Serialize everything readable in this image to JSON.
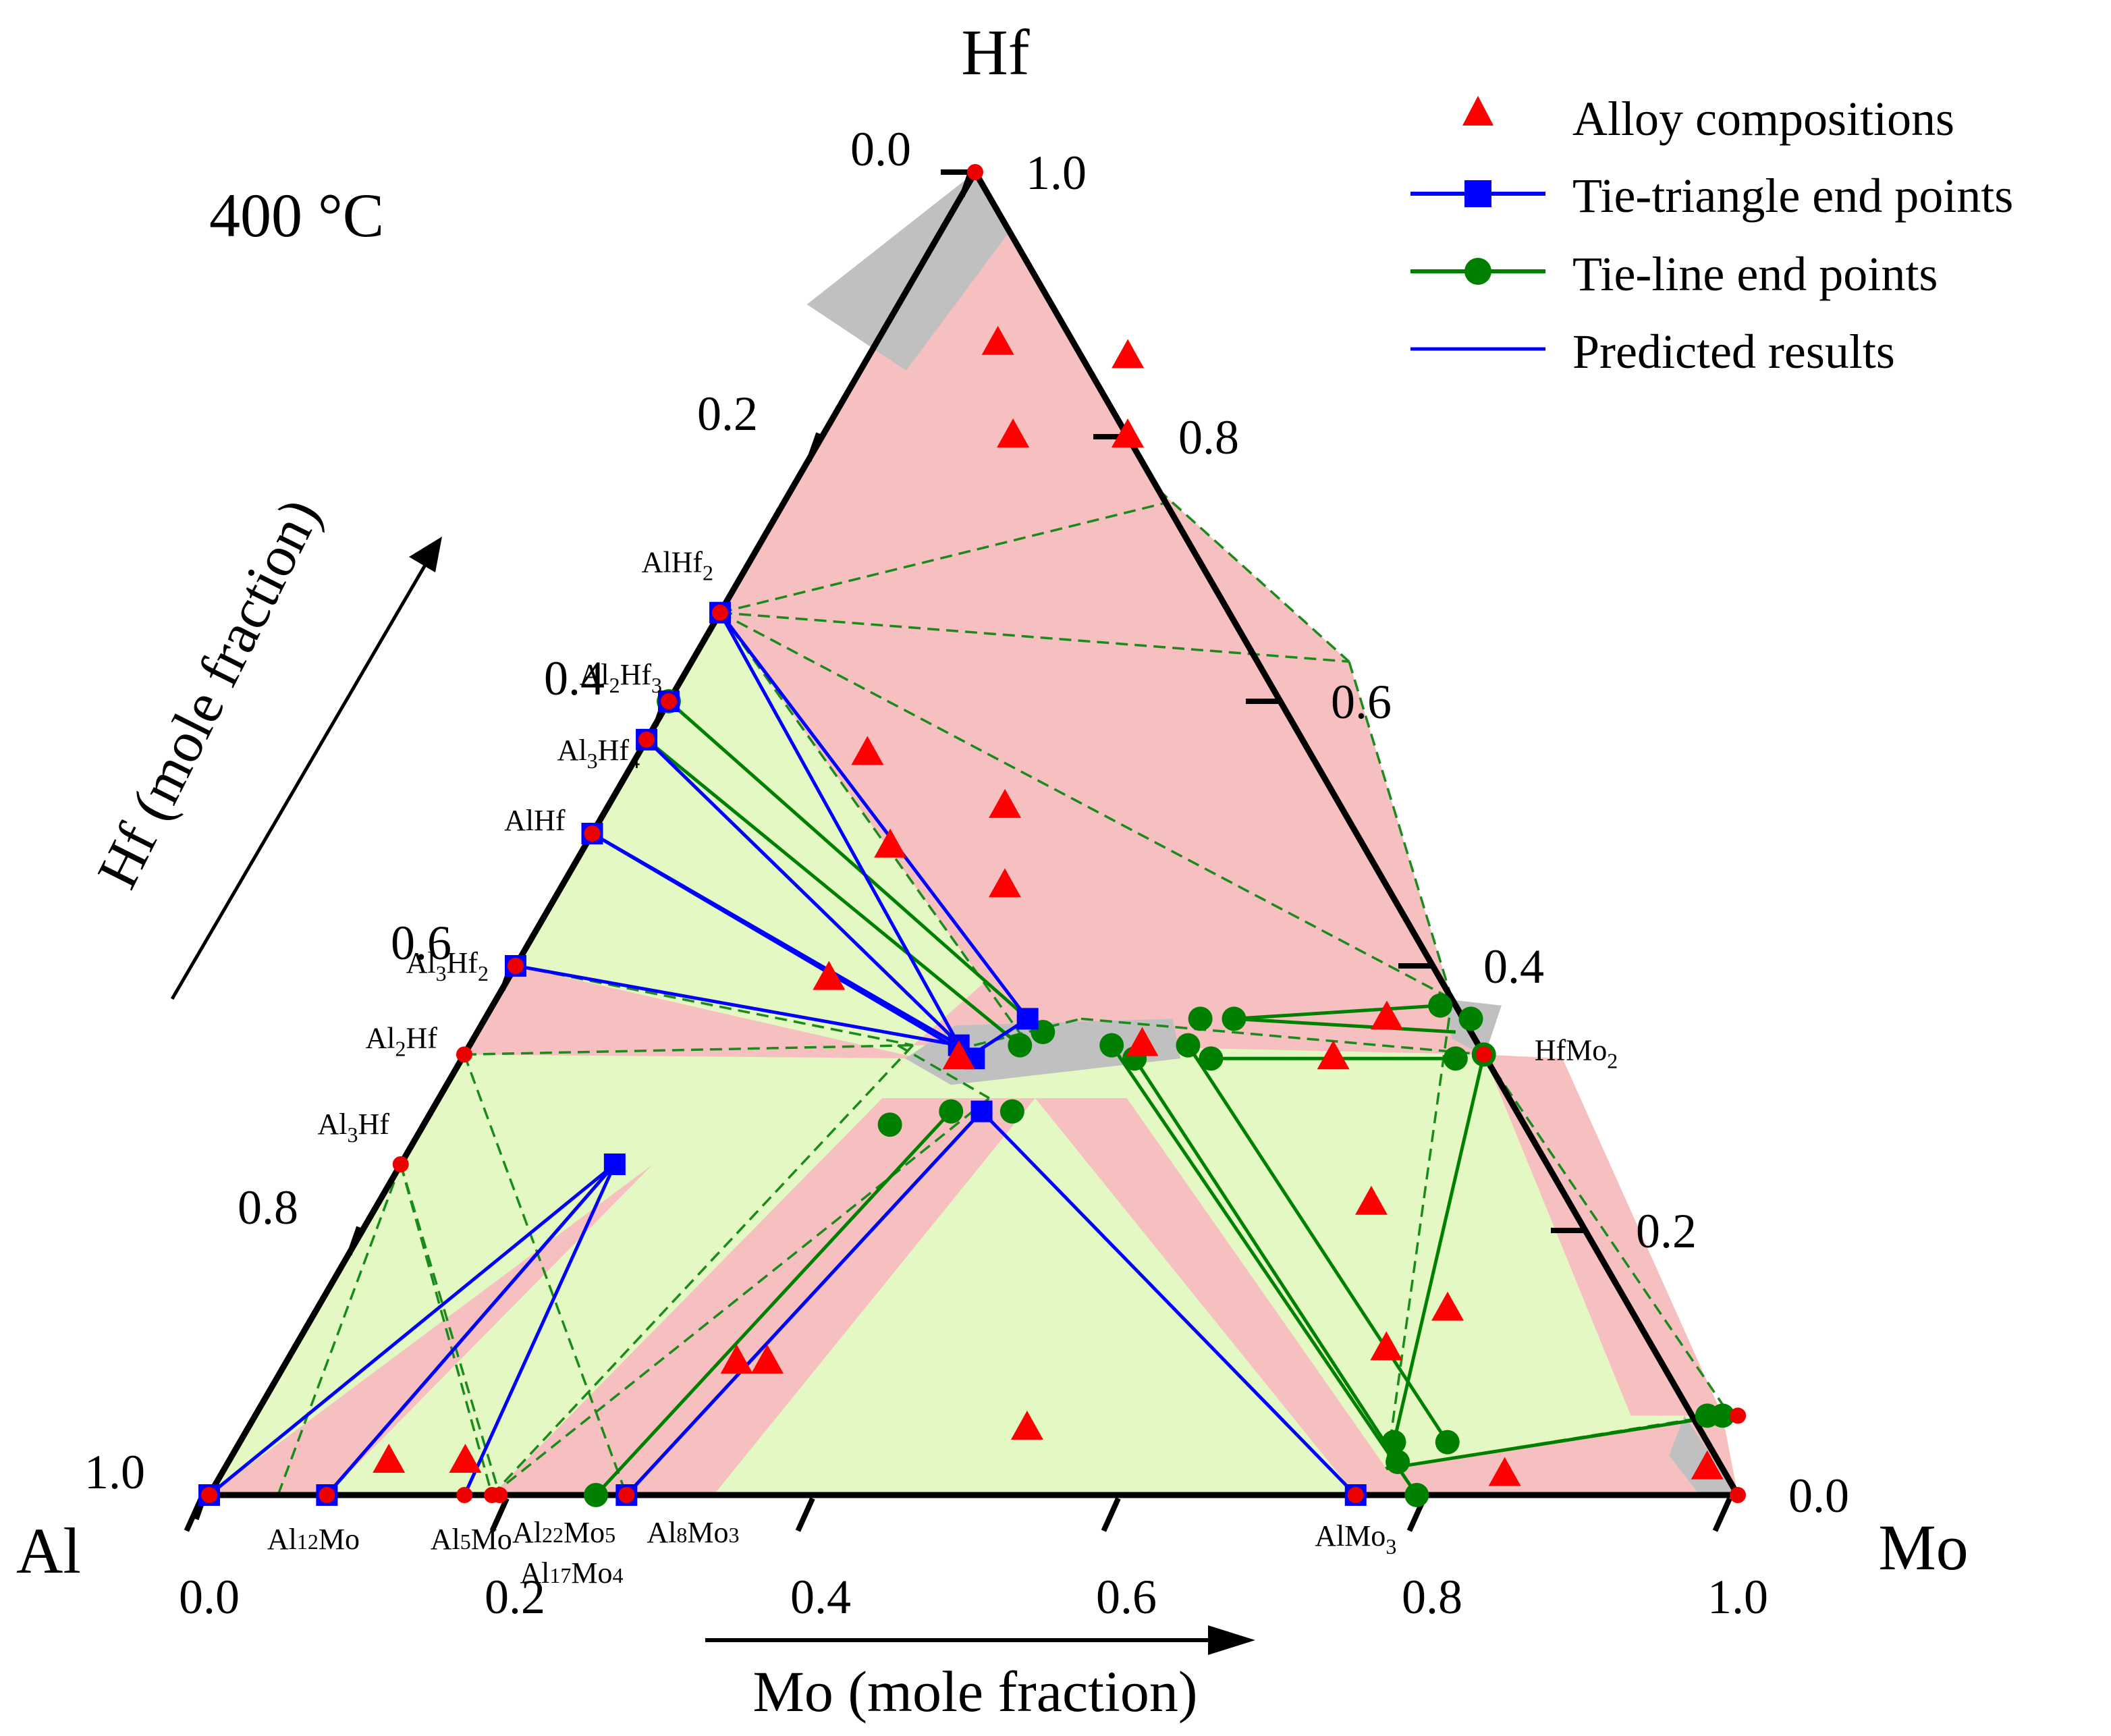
{
  "chart_data": {
    "type": "ternary",
    "title": "400 °C",
    "vertices": {
      "left": "Al",
      "right": "Mo",
      "top": "Hf"
    },
    "xlabel": "Mo (mole fraction)",
    "ylabel": "Hf (mole fraction)",
    "bottom_ticks": [
      "0.0",
      "0.2",
      "0.4",
      "0.6",
      "0.8",
      "1.0"
    ],
    "right_ticks": [
      "0.0",
      "0.2",
      "0.4",
      "0.6",
      "0.8",
      "1.0"
    ],
    "left_ticks": [
      "0.0",
      "0.2",
      "0.4",
      "0.6",
      "0.8",
      "1.0"
    ],
    "legend": {
      "position": "top-right",
      "items": [
        {
          "key": "alloy",
          "label": "Alloy compositions",
          "color": "#ff0000",
          "marker": "triangle"
        },
        {
          "key": "tie_triangle",
          "label": "Tie-triangle end points",
          "color": "#0000ff",
          "marker": "square"
        },
        {
          "key": "tie_line",
          "label": "Tie-line end points",
          "color": "#008000",
          "marker": "circle"
        },
        {
          "key": "predicted",
          "label": "Predicted results",
          "color": "#0000ff",
          "marker": "none"
        }
      ]
    },
    "colors": {
      "two_phase": "#e4f8c4",
      "three_phase": "#f7c0c0",
      "single_phase": "#c0c0c0",
      "predicted_line": "#1a8a1a",
      "phase_point": "#ee0000"
    },
    "phases": [
      {
        "name": "Al",
        "mo": 0.0,
        "hf": 0.0,
        "label": ""
      },
      {
        "name": "Al12Mo",
        "mo": 0.077,
        "hf": 0.0,
        "label_main": "Al",
        "sub1": "12",
        "rest": "Mo",
        "sub2": "",
        "sub_style": "small",
        "anchor": "middle"
      },
      {
        "name": "Al5Mo",
        "mo": 0.167,
        "hf": 0.0,
        "label_main": "Al",
        "sub1": "5",
        "rest": "Mo",
        "sub2": "",
        "sub_style": "small",
        "anchor": "middle"
      },
      {
        "name": "Al22Mo5",
        "mo": 0.185,
        "hf": 0.0,
        "label_main": "Al",
        "sub1": "22",
        "rest": "Mo",
        "sub2": "5",
        "sub_style": "small",
        "anchor": "start"
      },
      {
        "name": "Al17Mo4",
        "mo": 0.19,
        "hf": 0.0,
        "label_main": "Al",
        "sub1": "17",
        "rest": "Mo",
        "sub2": "4",
        "sub_style": "small",
        "anchor": "start"
      },
      {
        "name": "Al8Mo3",
        "mo": 0.273,
        "hf": 0.0,
        "label_main": "Al",
        "sub1": "8",
        "rest": "Mo",
        "sub2": "3",
        "sub_style": "small",
        "anchor": "start"
      },
      {
        "name": "AlMo3",
        "mo": 0.75,
        "hf": 0.0,
        "label_main": "AlMo",
        "sub1": "3",
        "rest": "",
        "sub2": "",
        "sub_style": "sub",
        "anchor": "middle"
      },
      {
        "name": "Mo",
        "mo": 1.0,
        "hf": 0.0,
        "label": ""
      },
      {
        "name": "Hf",
        "mo": 0.0,
        "hf": 1.0,
        "label": ""
      },
      {
        "name": "AlHf2",
        "mo": 0.0,
        "hf": 0.667,
        "label_main": "AlHf",
        "sub1": "2",
        "rest": "",
        "sub2": "",
        "sub_style": "sub",
        "anchor": "end"
      },
      {
        "name": "Al2Hf3",
        "mo": 0.0,
        "hf": 0.6,
        "label_main": "Al",
        "sub1": "2",
        "rest": "Hf",
        "sub2": "3",
        "sub_style": "sub",
        "anchor": "end"
      },
      {
        "name": "Al3Hf4",
        "mo": 0.0,
        "hf": 0.571,
        "label_main": "Al",
        "sub1": "3",
        "rest": "Hf",
        "sub2": "4",
        "sub_style": "sub",
        "anchor": "end"
      },
      {
        "name": "AlHf",
        "mo": 0.0,
        "hf": 0.5,
        "label_main": "AlHf",
        "sub1": "",
        "rest": "",
        "sub2": "",
        "sub_style": "sub",
        "anchor": "end"
      },
      {
        "name": "Al3Hf2",
        "mo": 0.0,
        "hf": 0.4,
        "label_main": "Al",
        "sub1": "3",
        "rest": "Hf",
        "sub2": "2",
        "sub_style": "sub",
        "anchor": "end"
      },
      {
        "name": "Al2Hf",
        "mo": 0.0,
        "hf": 0.333,
        "label_main": "Al",
        "sub1": "2",
        "rest": "Hf",
        "sub2": "",
        "sub_style": "sub",
        "anchor": "end"
      },
      {
        "name": "Al3Hf",
        "mo": 0.0,
        "hf": 0.25,
        "label_main": "Al",
        "sub1": "3",
        "rest": "Hf",
        "sub2": "",
        "sub_style": "sub",
        "anchor": "middle"
      },
      {
        "name": "HfMo2",
        "mo": 0.667,
        "hf": 0.333,
        "label_main": "HfMo",
        "sub1": "2",
        "rest": "",
        "sub2": "",
        "sub_style": "sub",
        "anchor": "start"
      },
      {
        "name": "Mo-rich",
        "mo": 0.97,
        "hf": 0.06,
        "label": ""
      }
    ],
    "three_phase_regions": [
      [
        [
          0.0,
          1.0
        ],
        [
          0.105,
          0.895
        ],
        [
          0.24,
          0.76
        ],
        [
          0.0,
          1.0
        ]
      ],
      [
        [
          0.0,
          0.667
        ],
        [
          0.24,
          0.76
        ],
        [
          0.0,
          1.0
        ]
      ],
      [
        [
          0.0,
          0.667
        ],
        [
          0.24,
          0.76
        ],
        [
          0.43,
          0.63
        ],
        [
          0.0,
          0.667
        ]
      ],
      [
        [
          0.0,
          0.667
        ],
        [
          0.36,
          0.345
        ],
        [
          0.43,
          0.63
        ]
      ],
      [
        [
          0.29,
          0.34
        ],
        [
          0.43,
          0.63
        ],
        [
          0.625,
          0.375
        ],
        [
          0.39,
          0.34
        ]
      ],
      [
        [
          0.0,
          0.333
        ],
        [
          0.0,
          0.4
        ],
        [
          0.3,
          0.33
        ]
      ],
      [
        [
          0.625,
          0.375
        ],
        [
          0.667,
          0.333
        ],
        [
          0.39,
          0.34
        ],
        [
          0.36,
          0.36
        ]
      ],
      [
        [
          0.02,
          0.0
        ],
        [
          0.077,
          0.0
        ],
        [
          0.165,
          0.25
        ],
        [
          0.0,
          0.0
        ]
      ],
      [
        [
          0.185,
          0.0
        ],
        [
          0.273,
          0.0
        ],
        [
          0.36,
          0.3
        ],
        [
          0.29,
          0.3
        ]
      ],
      [
        [
          0.273,
          0.0
        ],
        [
          0.33,
          0.0
        ],
        [
          0.39,
          0.3
        ],
        [
          0.36,
          0.3
        ]
      ],
      [
        [
          0.39,
          0.3
        ],
        [
          0.45,
          0.3
        ],
        [
          0.76,
          0.02
        ],
        [
          0.75,
          0.0
        ]
      ],
      [
        [
          0.75,
          0.0
        ],
        [
          1.0,
          0.0
        ],
        [
          0.96,
          0.06
        ],
        [
          0.76,
          0.02
        ]
      ],
      [
        [
          0.667,
          0.333
        ],
        [
          0.72,
          0.33
        ],
        [
          0.96,
          0.06
        ],
        [
          0.9,
          0.06
        ]
      ]
    ],
    "single_phase_regions": [
      [
        [
          0.0,
          1.0
        ],
        [
          0.045,
          0.955
        ],
        [
          0.03,
          0.85
        ],
        [
          -0.06,
          0.9
        ]
      ],
      [
        [
          0.31,
          0.355
        ],
        [
          0.45,
          0.36
        ],
        [
          0.47,
          0.33
        ],
        [
          0.33,
          0.31
        ],
        [
          0.29,
          0.33
        ]
      ],
      [
        [
          0.62,
          0.375
        ],
        [
          0.66,
          0.37
        ],
        [
          0.668,
          0.332
        ],
        [
          0.64,
          0.345
        ]
      ],
      [
        [
          0.935,
          0.06
        ],
        [
          1.0,
          0.0
        ],
        [
          0.975,
          0.0
        ],
        [
          0.94,
          0.03
        ]
      ]
    ],
    "tie_triangles": [
      [
        [
          0.0,
          0.0
        ],
        [
          0.077,
          0.0
        ],
        [
          0.14,
          0.25
        ]
      ],
      [
        [
          0.077,
          0.0
        ],
        [
          0.14,
          0.25
        ],
        [
          0.167,
          0.0
        ]
      ],
      [
        [
          0.0,
          0.667
        ],
        [
          0.0,
          0.6
        ],
        [
          0.0,
          0.571
        ]
      ],
      [
        [
          0.0,
          0.571
        ],
        [
          0.335,
          0.33
        ],
        [
          0.0,
          0.5
        ]
      ],
      [
        [
          0.0,
          0.5
        ],
        [
          0.32,
          0.34
        ],
        [
          0.0,
          0.4
        ]
      ],
      [
        [
          0.0,
          0.667
        ],
        [
          0.355,
          0.36
        ],
        [
          0.33,
          0.33
        ]
      ],
      [
        [
          0.273,
          0.0
        ],
        [
          0.36,
          0.29
        ],
        [
          0.75,
          0.0
        ]
      ]
    ],
    "tie_triangle_points": [
      [
        0.0,
        0.0
      ],
      [
        0.077,
        0.0
      ],
      [
        0.14,
        0.25
      ],
      [
        0.0,
        0.667
      ],
      [
        0.0,
        0.6
      ],
      [
        0.0,
        0.571
      ],
      [
        0.0,
        0.5
      ],
      [
        0.0,
        0.4
      ],
      [
        0.335,
        0.33
      ],
      [
        0.32,
        0.34
      ],
      [
        0.355,
        0.36
      ],
      [
        0.36,
        0.29
      ],
      [
        0.273,
        0.0
      ],
      [
        0.75,
        0.0
      ]
    ],
    "tie_lines": [
      [
        [
          0.0,
          0.6
        ],
        [
          0.37,
          0.35
        ]
      ],
      [
        [
          0.0,
          0.571
        ],
        [
          0.36,
          0.34
        ]
      ],
      [
        [
          0.253,
          0.0
        ],
        [
          0.34,
          0.29
        ]
      ],
      [
        [
          0.273,
          0.0
        ],
        [
          0.36,
          0.29
        ]
      ],
      [
        [
          0.42,
          0.34
        ],
        [
          0.79,
          0.0
        ]
      ],
      [
        [
          0.44,
          0.33
        ],
        [
          0.765,
          0.025
        ]
      ],
      [
        [
          0.47,
          0.34
        ],
        [
          0.79,
          0.04
        ]
      ],
      [
        [
          0.49,
          0.36
        ],
        [
          0.62,
          0.37
        ]
      ],
      [
        [
          0.49,
          0.33
        ],
        [
          0.65,
          0.33
        ]
      ],
      [
        [
          0.49,
          0.36
        ],
        [
          0.64,
          0.35
        ]
      ],
      [
        [
          0.667,
          0.333
        ],
        [
          0.755,
          0.04
        ]
      ],
      [
        [
          0.76,
          0.02
        ],
        [
          0.96,
          0.06
        ]
      ]
    ],
    "tie_line_points": [
      [
        0.37,
        0.35
      ],
      [
        0.36,
        0.34
      ],
      [
        0.0,
        0.6
      ],
      [
        0.34,
        0.29
      ],
      [
        0.253,
        0.0
      ],
      [
        0.38,
        0.29
      ],
      [
        0.42,
        0.34
      ],
      [
        0.79,
        0.0
      ],
      [
        0.44,
        0.33
      ],
      [
        0.765,
        0.025
      ],
      [
        0.47,
        0.34
      ],
      [
        0.79,
        0.04
      ],
      [
        0.49,
        0.36
      ],
      [
        0.62,
        0.37
      ],
      [
        0.49,
        0.33
      ],
      [
        0.65,
        0.33
      ],
      [
        0.667,
        0.333
      ],
      [
        0.755,
        0.04
      ],
      [
        0.96,
        0.06
      ],
      [
        0.95,
        0.06
      ],
      [
        0.645,
        0.36
      ],
      [
        0.468,
        0.36
      ],
      [
        0.305,
        0.28
      ]
    ],
    "predicted_lines": [
      [
        [
          0.105,
          0.895
        ],
        [
          0.24,
          0.76
        ]
      ],
      [
        [
          0.24,
          0.76
        ],
        [
          0.43,
          0.63
        ]
      ],
      [
        [
          0.0,
          0.667
        ],
        [
          0.43,
          0.63
        ]
      ],
      [
        [
          0.0,
          0.667
        ],
        [
          0.25,
          0.75
        ]
      ],
      [
        [
          0.0,
          0.667
        ],
        [
          0.36,
          0.345
        ]
      ],
      [
        [
          0.0,
          0.667
        ],
        [
          0.625,
          0.375
        ]
      ],
      [
        [
          0.43,
          0.63
        ],
        [
          0.625,
          0.375
        ]
      ],
      [
        [
          0.0,
          0.333
        ],
        [
          0.29,
          0.34
        ]
      ],
      [
        [
          0.0,
          0.4
        ],
        [
          0.29,
          0.34
        ]
      ],
      [
        [
          0.0,
          0.333
        ],
        [
          0.273,
          0.0
        ]
      ],
      [
        [
          0.0,
          0.25
        ],
        [
          0.185,
          0.0
        ]
      ],
      [
        [
          0.0,
          0.25
        ],
        [
          0.19,
          0.0
        ]
      ],
      [
        [
          0.0,
          0.25
        ],
        [
          0.045,
          0.0
        ]
      ],
      [
        [
          0.29,
          0.34
        ],
        [
          0.185,
          0.0
        ]
      ],
      [
        [
          0.185,
          0.0
        ],
        [
          0.36,
          0.3
        ]
      ],
      [
        [
          0.39,
          0.36
        ],
        [
          0.667,
          0.333
        ]
      ],
      [
        [
          0.667,
          0.333
        ],
        [
          0.755,
          0.04
        ]
      ],
      [
        [
          0.625,
          0.375
        ],
        [
          0.76,
          0.02
        ]
      ],
      [
        [
          0.76,
          0.02
        ],
        [
          0.955,
          0.06
        ]
      ],
      [
        [
          0.667,
          0.333
        ],
        [
          0.965,
          0.06
        ]
      ],
      [
        [
          0.28,
          0.34
        ],
        [
          0.36,
          0.3
        ]
      ],
      [
        [
          0.33,
          0.34
        ],
        [
          0.39,
          0.36
        ]
      ]
    ],
    "alloy_compositions": [
      [
        0.08,
        0.87
      ],
      [
        0.17,
        0.86
      ],
      [
        0.125,
        0.8
      ],
      [
        0.2,
        0.8
      ],
      [
        0.15,
        0.56
      ],
      [
        0.26,
        0.52
      ],
      [
        0.2,
        0.49
      ],
      [
        0.29,
        0.46
      ],
      [
        0.21,
        0.39
      ],
      [
        0.44,
        0.34
      ],
      [
        0.325,
        0.33
      ],
      [
        0.57,
        0.33
      ],
      [
        0.59,
        0.36
      ],
      [
        0.65,
        0.22
      ],
      [
        0.74,
        0.14
      ],
      [
        0.715,
        0.11
      ],
      [
        0.295,
        0.1
      ],
      [
        0.315,
        0.1
      ],
      [
        0.51,
        0.05
      ],
      [
        0.105,
        0.025
      ],
      [
        0.155,
        0.025
      ],
      [
        0.84,
        0.015
      ],
      [
        0.97,
        0.02
      ]
    ]
  }
}
